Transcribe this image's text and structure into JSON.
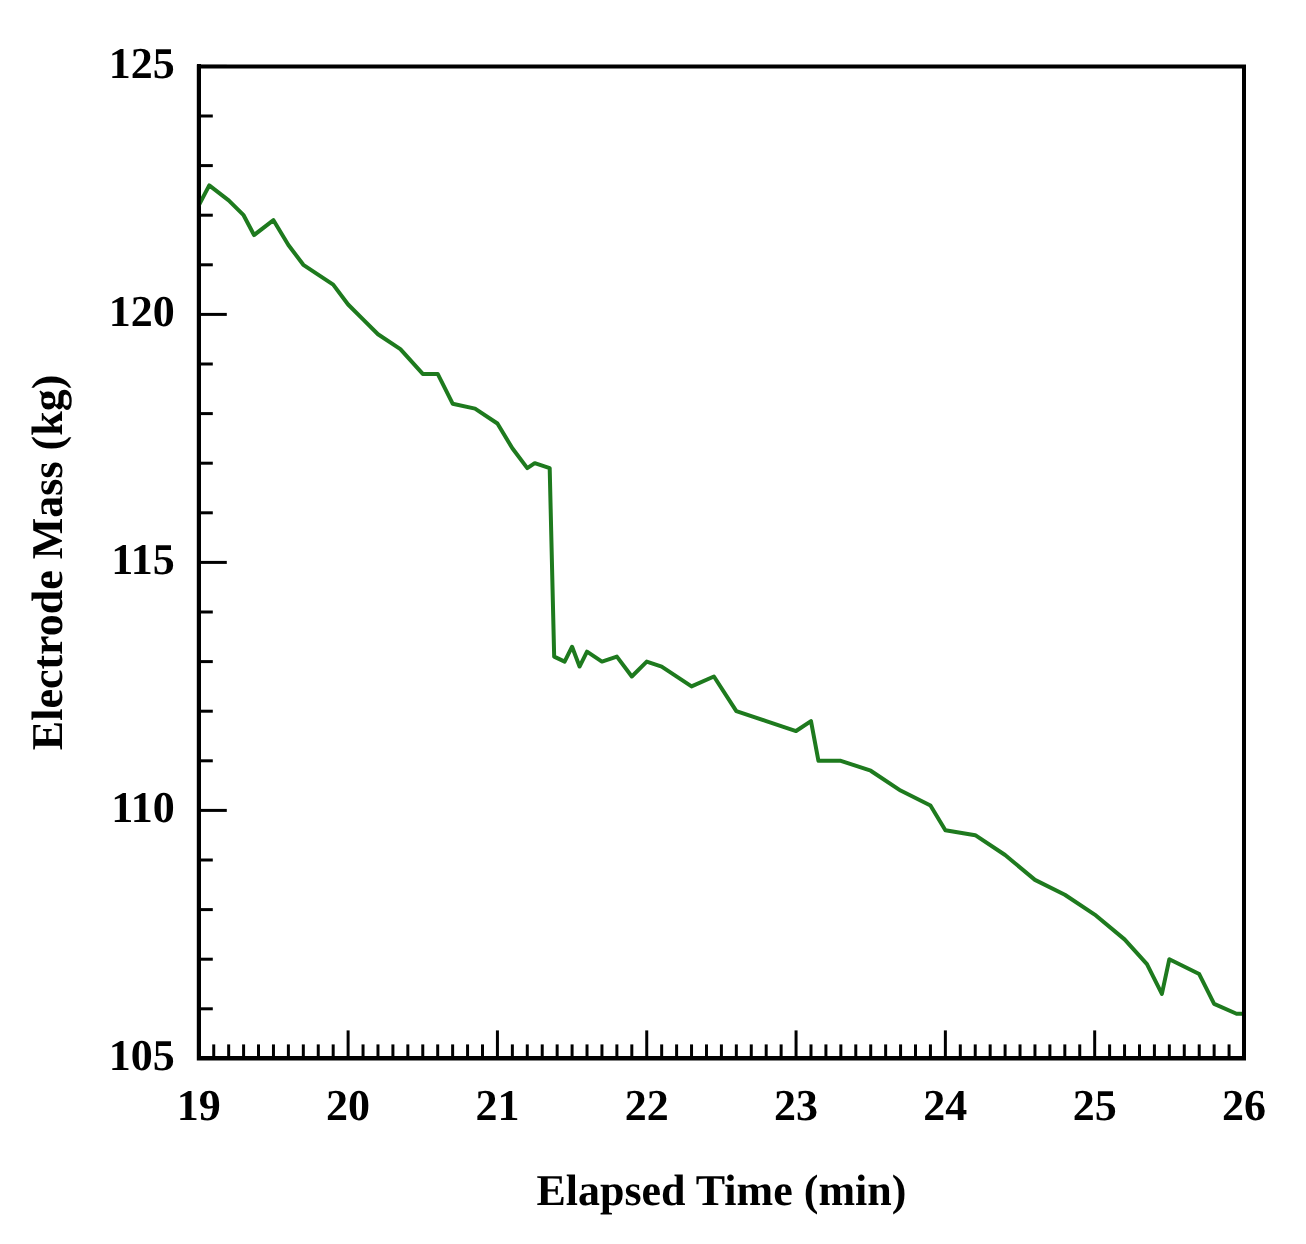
{
  "chart_data": {
    "type": "line",
    "xlabel": "Elapsed Time (min)",
    "ylabel": "Electrode Mass (kg)",
    "x": [
      19.0,
      19.07,
      19.2,
      19.3,
      19.37,
      19.5,
      19.6,
      19.7,
      19.9,
      20.0,
      20.1,
      20.2,
      20.35,
      20.5,
      20.6,
      20.7,
      20.85,
      21.0,
      21.1,
      21.2,
      21.25,
      21.35,
      21.38,
      21.45,
      21.5,
      21.55,
      21.6,
      21.7,
      21.8,
      21.9,
      22.0,
      22.1,
      22.3,
      22.45,
      22.6,
      22.8,
      23.0,
      23.1,
      23.15,
      23.3,
      23.5,
      23.7,
      23.9,
      24.0,
      24.2,
      24.4,
      24.6,
      24.8,
      25.0,
      25.2,
      25.35,
      25.45,
      25.5,
      25.7,
      25.8,
      25.95,
      26.0
    ],
    "series": [
      {
        "color": "#1e7a1e",
        "values": [
          122.2,
          122.6,
          122.3,
          122.0,
          121.6,
          121.9,
          121.4,
          121.0,
          120.6,
          120.2,
          119.9,
          119.6,
          119.3,
          118.8,
          118.8,
          118.2,
          118.1,
          117.8,
          117.3,
          116.9,
          117.0,
          116.9,
          113.1,
          113.0,
          113.3,
          112.9,
          113.2,
          113.0,
          113.1,
          112.7,
          113.0,
          112.9,
          112.5,
          112.7,
          112.0,
          111.8,
          111.6,
          111.8,
          111.0,
          111.0,
          110.8,
          110.4,
          110.1,
          109.6,
          109.5,
          109.1,
          108.6,
          108.3,
          107.9,
          107.4,
          106.9,
          106.3,
          107.0,
          106.7,
          106.1,
          105.9,
          105.9
        ]
      }
    ],
    "xlim": [
      19,
      26
    ],
    "xticks": [
      19,
      {
        "value": 19.1,
        "label": null
      },
      {
        "value": 19.2,
        "label": null
      },
      {
        "value": 19.3,
        "label": null
      },
      {
        "value": 19.4,
        "label": null
      },
      {
        "value": 19.5,
        "label": null
      },
      {
        "value": 19.6,
        "label": null
      },
      {
        "value": 19.7,
        "label": null
      },
      {
        "value": 19.8,
        "label": null
      },
      {
        "value": 19.9,
        "label": null
      },
      20,
      {
        "value": 20.1,
        "label": null
      },
      {
        "value": 20.2,
        "label": null
      },
      {
        "value": 20.3,
        "label": null
      },
      {
        "value": 20.4,
        "label": null
      },
      {
        "value": 20.5,
        "label": null
      },
      {
        "value": 20.6,
        "label": null
      },
      {
        "value": 20.7,
        "label": null
      },
      {
        "value": 20.8,
        "label": null
      },
      {
        "value": 20.9,
        "label": null
      },
      21,
      {
        "value": 21.1,
        "label": null
      },
      {
        "value": 21.2,
        "label": null
      },
      {
        "value": 21.3,
        "label": null
      },
      {
        "value": 21.4,
        "label": null
      },
      {
        "value": 21.5,
        "label": null
      },
      {
        "value": 21.6,
        "label": null
      },
      {
        "value": 21.7,
        "label": null
      },
      {
        "value": 21.8,
        "label": null
      },
      {
        "value": 21.9,
        "label": null
      },
      22,
      {
        "value": 22.1,
        "label": null
      },
      {
        "value": 22.2,
        "label": null
      },
      {
        "value": 22.3,
        "label": null
      },
      {
        "value": 22.4,
        "label": null
      },
      {
        "value": 22.5,
        "label": null
      },
      {
        "value": 22.6,
        "label": null
      },
      {
        "value": 22.7,
        "label": null
      },
      {
        "value": 22.8,
        "label": null
      },
      {
        "value": 22.9,
        "label": null
      },
      23,
      {
        "value": 23.1,
        "label": null
      },
      {
        "value": 23.2,
        "label": null
      },
      {
        "value": 23.3,
        "label": null
      },
      {
        "value": 23.4,
        "label": null
      },
      {
        "value": 23.5,
        "label": null
      },
      {
        "value": 23.6,
        "label": null
      },
      {
        "value": 23.7,
        "label": null
      },
      {
        "value": 23.8,
        "label": null
      },
      {
        "value": 23.9,
        "label": null
      },
      24,
      {
        "value": 24.1,
        "label": null
      },
      {
        "value": 24.2,
        "label": null
      },
      {
        "value": 24.3,
        "label": null
      },
      {
        "value": 24.4,
        "label": null
      },
      {
        "value": 24.5,
        "label": null
      },
      {
        "value": 24.6,
        "label": null
      },
      {
        "value": 24.7,
        "label": null
      },
      {
        "value": 24.8,
        "label": null
      },
      {
        "value": 24.9,
        "label": null
      },
      25,
      {
        "value": 25.1,
        "label": null
      },
      {
        "value": 25.2,
        "label": null
      },
      {
        "value": 25.3,
        "label": null
      },
      {
        "value": 25.4,
        "label": null
      },
      {
        "value": 25.5,
        "label": null
      },
      {
        "value": 25.6,
        "label": null
      },
      {
        "value": 25.7,
        "label": null
      },
      {
        "value": 25.8,
        "label": null
      },
      {
        "value": 25.9,
        "label": null
      },
      26
    ],
    "ylim": [
      105,
      125
    ],
    "yticks": [
      105,
      {
        "value": 106,
        "label": null
      },
      {
        "value": 107,
        "label": null
      },
      {
        "value": 108,
        "label": null
      },
      {
        "value": 109,
        "label": null
      },
      110,
      {
        "value": 111,
        "label": null
      },
      {
        "value": 112,
        "label": null
      },
      {
        "value": 113,
        "label": null
      },
      {
        "value": 114,
        "label": null
      },
      115,
      {
        "value": 116,
        "label": null
      },
      {
        "value": 117,
        "label": null
      },
      {
        "value": 118,
        "label": null
      },
      {
        "value": 119,
        "label": null
      },
      120,
      {
        "value": 121,
        "label": null
      },
      {
        "value": 122,
        "label": null
      },
      {
        "value": 123,
        "label": null
      },
      {
        "value": 124,
        "label": null
      },
      125
    ],
    "grid": false,
    "legend": false,
    "marker": "none",
    "line_style": "solid"
  }
}
